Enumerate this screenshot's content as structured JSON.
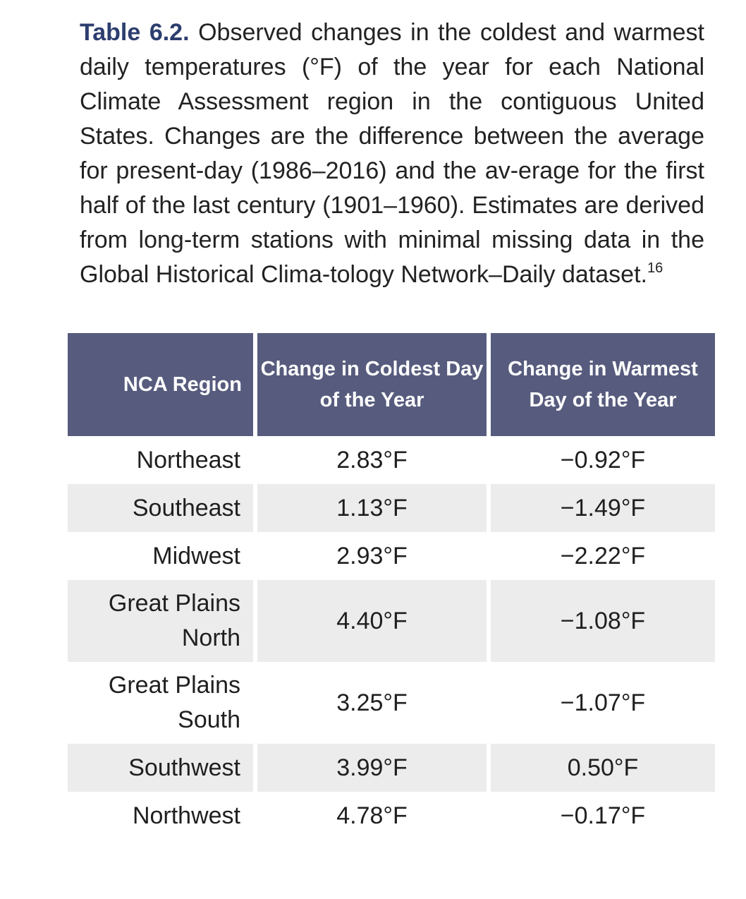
{
  "caption": {
    "label": "Table 6.2.",
    "text": "Observed changes in the coldest and warmest daily temperatures (°F) of the year for each National Climate Assessment region in the contiguous United States. Changes are the difference between the average for present-day (1986–2016) and the av-erage for the first half of the last century (1901–1960). Estimates are derived from long-term stations with minimal missing data in the Global Historical Clima-tology Network–Daily dataset.",
    "footnote": "16"
  },
  "table": {
    "headers": [
      "NCA Region",
      "Change in Coldest Day of the Year",
      "Change in Warmest Day of the Year"
    ],
    "rows": [
      {
        "region": "Northeast",
        "coldest": "2.83°F",
        "warmest": "−0.92°F"
      },
      {
        "region": "Southeast",
        "coldest": "1.13°F",
        "warmest": "−1.49°F"
      },
      {
        "region": "Midwest",
        "coldest": "2.93°F",
        "warmest": "−2.22°F"
      },
      {
        "region": "Great Plains North",
        "coldest": "4.40°F",
        "warmest": "−1.08°F"
      },
      {
        "region": "Great Plains South",
        "coldest": "3.25°F",
        "warmest": "−1.07°F"
      },
      {
        "region": "Southwest",
        "coldest": "3.99°F",
        "warmest": "0.50°F"
      },
      {
        "region": "Northwest",
        "coldest": "4.78°F",
        "warmest": "−0.17°F"
      }
    ]
  }
}
